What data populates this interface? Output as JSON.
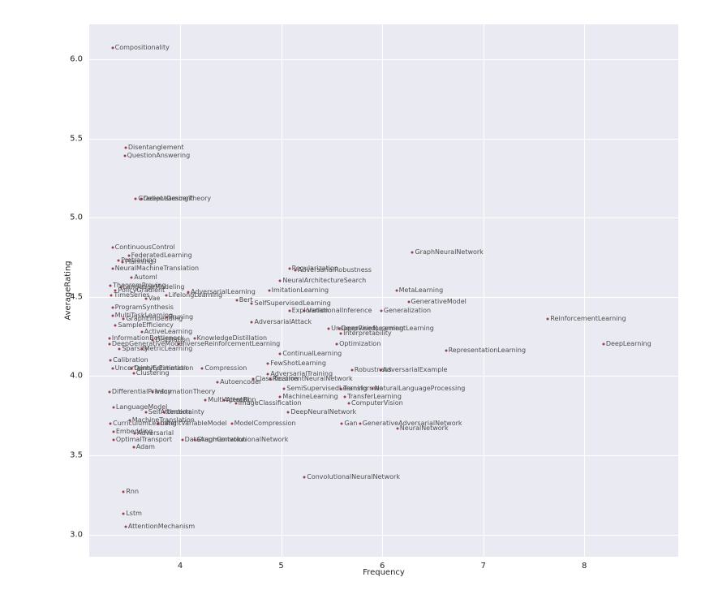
{
  "chart_data": {
    "type": "scatter",
    "title": "",
    "xlabel": "Frequency",
    "ylabel": "AverageRating",
    "xlim": [
      3.1,
      8.93
    ],
    "ylim": [
      2.86,
      6.22
    ],
    "x_ticks": [
      4,
      5,
      6,
      7,
      8
    ],
    "x_tick_labels": [
      "4",
      "5",
      "6",
      "7",
      "8"
    ],
    "y_ticks": [
      3.0,
      3.5,
      4.0,
      4.5,
      5.0,
      5.5,
      6.0
    ],
    "y_tick_labels": [
      "3.0",
      "3.5",
      "4.0",
      "4.5",
      "5.0",
      "5.5",
      "6.0"
    ],
    "grid": true,
    "legend": false,
    "style": {
      "plot_bg": "#eaeaf2",
      "grid_color": "#ffffff",
      "dot_color": "#8f2d3c",
      "point_label_color": "#4d4d4d",
      "tick_color": "#262626"
    },
    "points": [
      {
        "label": "Compositionality",
        "x": 3.33,
        "y": 6.07
      },
      {
        "label": "Disentanglement",
        "x": 3.46,
        "y": 5.44
      },
      {
        "label": "QuestionAnswering",
        "x": 3.45,
        "y": 5.39
      },
      {
        "label": "GradientDescent",
        "x": 3.56,
        "y": 5.12
      },
      {
        "label": "DeepLearningTheory",
        "x": 3.61,
        "y": 5.12
      },
      {
        "label": "ContinuousControl",
        "x": 3.33,
        "y": 4.81
      },
      {
        "label": "FederatedLearning",
        "x": 3.49,
        "y": 4.76
      },
      {
        "label": "Pretraining",
        "x": 3.39,
        "y": 4.73
      },
      {
        "label": "Planning",
        "x": 3.43,
        "y": 4.72
      },
      {
        "label": "NeuralMachineTranslation",
        "x": 3.33,
        "y": 4.68
      },
      {
        "label": "Regularization",
        "x": 5.08,
        "y": 4.68
      },
      {
        "label": "AdversarialRobustness",
        "x": 5.14,
        "y": 4.67
      },
      {
        "label": "Automl",
        "x": 3.52,
        "y": 4.62
      },
      {
        "label": "TheoremProving",
        "x": 3.31,
        "y": 4.57
      },
      {
        "label": "LanguageModeling",
        "x": 3.41,
        "y": 4.56
      },
      {
        "label": "NeuralArchitectureSearch",
        "x": 4.99,
        "y": 4.6
      },
      {
        "label": "PolicyGradient",
        "x": 3.36,
        "y": 4.54
      },
      {
        "label": "AdversarialLearning",
        "x": 4.08,
        "y": 4.53
      },
      {
        "label": "ImitationLearning",
        "x": 4.88,
        "y": 4.54
      },
      {
        "label": "MetaLearning",
        "x": 6.14,
        "y": 4.54
      },
      {
        "label": "TimeSeries",
        "x": 3.32,
        "y": 4.51
      },
      {
        "label": "LifelongLearning",
        "x": 3.86,
        "y": 4.51
      },
      {
        "label": "Vae",
        "x": 3.66,
        "y": 4.49
      },
      {
        "label": "Bert",
        "x": 4.56,
        "y": 4.48
      },
      {
        "label": "SelfSupervisedLearning",
        "x": 4.71,
        "y": 4.46
      },
      {
        "label": "ProgramSynthesis",
        "x": 3.33,
        "y": 4.43
      },
      {
        "label": "Exploration",
        "x": 5.08,
        "y": 4.41
      },
      {
        "label": "VariationalInference",
        "x": 5.23,
        "y": 4.41
      },
      {
        "label": "Generalization",
        "x": 5.99,
        "y": 4.41
      },
      {
        "label": "GenerativeModel",
        "x": 6.26,
        "y": 4.47
      },
      {
        "label": "GraphNeuralNetwork",
        "x": 6.3,
        "y": 4.78
      },
      {
        "label": "ReinforcementLearning",
        "x": 7.64,
        "y": 4.36
      },
      {
        "label": "MultiTaskLearning",
        "x": 3.33,
        "y": 4.38
      },
      {
        "label": "GraphEmbedding",
        "x": 3.44,
        "y": 4.36
      },
      {
        "label": "Pruning",
        "x": 3.86,
        "y": 4.37
      },
      {
        "label": "SampleEfficiency",
        "x": 3.36,
        "y": 4.32
      },
      {
        "label": "AdversarialAttack",
        "x": 4.71,
        "y": 4.34
      },
      {
        "label": "UnsupervisedLearning",
        "x": 5.47,
        "y": 4.3
      },
      {
        "label": "DeepReinforcementLearning",
        "x": 5.57,
        "y": 4.3
      },
      {
        "label": "ActiveLearning",
        "x": 3.62,
        "y": 4.28
      },
      {
        "label": "InformationBottleneck",
        "x": 3.3,
        "y": 4.24
      },
      {
        "label": "Distillation",
        "x": 3.73,
        "y": 4.23
      },
      {
        "label": "KnowledgeDistillation",
        "x": 4.14,
        "y": 4.24
      },
      {
        "label": "Interpretability",
        "x": 5.59,
        "y": 4.27
      },
      {
        "label": "DeepGenerativeModel",
        "x": 3.3,
        "y": 4.2
      },
      {
        "label": "InverseReinforcementLearning",
        "x": 3.98,
        "y": 4.2
      },
      {
        "label": "Optimization",
        "x": 5.55,
        "y": 4.2
      },
      {
        "label": "Sparsity",
        "x": 3.4,
        "y": 4.17
      },
      {
        "label": "MetricLearning",
        "x": 3.62,
        "y": 4.17
      },
      {
        "label": "RepresentationLearning",
        "x": 6.63,
        "y": 4.16
      },
      {
        "label": "DeepLearning",
        "x": 8.19,
        "y": 4.2
      },
      {
        "label": "ContinualLearning",
        "x": 4.99,
        "y": 4.14
      },
      {
        "label": "Calibration",
        "x": 3.31,
        "y": 4.1
      },
      {
        "label": "FewShotLearning",
        "x": 4.87,
        "y": 4.08
      },
      {
        "label": "UncertaintyEstimation",
        "x": 3.33,
        "y": 4.05
      },
      {
        "label": "DensityEstimation",
        "x": 3.52,
        "y": 4.05
      },
      {
        "label": "Compression",
        "x": 4.22,
        "y": 4.05
      },
      {
        "label": "Robustness",
        "x": 5.7,
        "y": 4.04
      },
      {
        "label": "AdversarialExample",
        "x": 5.98,
        "y": 4.04
      },
      {
        "label": "Clustering",
        "x": 3.54,
        "y": 4.02
      },
      {
        "label": "AdversarialTraining",
        "x": 4.87,
        "y": 4.01
      },
      {
        "label": "Classification",
        "x": 4.72,
        "y": 3.98
      },
      {
        "label": "RecurrentNeuralNetwork",
        "x": 4.89,
        "y": 3.98
      },
      {
        "label": "Autoencoder",
        "x": 4.37,
        "y": 3.96
      },
      {
        "label": "DifferentialPrivacy",
        "x": 3.3,
        "y": 3.9
      },
      {
        "label": "InformationTheory",
        "x": 3.73,
        "y": 3.9
      },
      {
        "label": "SemiSupervisedLearning",
        "x": 5.03,
        "y": 3.92
      },
      {
        "label": "Transformer",
        "x": 5.59,
        "y": 3.92
      },
      {
        "label": "NaturalLanguageProcessing",
        "x": 5.9,
        "y": 3.92
      },
      {
        "label": "MachineLearning",
        "x": 4.99,
        "y": 3.87
      },
      {
        "label": "TransferLearning",
        "x": 5.63,
        "y": 3.87
      },
      {
        "label": "MultiAgentRl",
        "x": 4.25,
        "y": 3.85
      },
      {
        "label": "Attention",
        "x": 4.43,
        "y": 3.85
      },
      {
        "label": "ImageClassification",
        "x": 4.55,
        "y": 3.83
      },
      {
        "label": "ComputerVision",
        "x": 5.67,
        "y": 3.83
      },
      {
        "label": "LanguageModel",
        "x": 3.34,
        "y": 3.8
      },
      {
        "label": "SelfAttention",
        "x": 3.66,
        "y": 3.77
      },
      {
        "label": "Uncertainty",
        "x": 3.84,
        "y": 3.77
      },
      {
        "label": "DeepNeuralNetwork",
        "x": 5.07,
        "y": 3.77
      },
      {
        "label": "MachineTranslation",
        "x": 3.5,
        "y": 3.72
      },
      {
        "label": "CurriculumLearning",
        "x": 3.31,
        "y": 3.7
      },
      {
        "label": "LatentVariableModel",
        "x": 3.78,
        "y": 3.7
      },
      {
        "label": "ModelCompression",
        "x": 4.51,
        "y": 3.7
      },
      {
        "label": "Gan",
        "x": 5.6,
        "y": 3.7
      },
      {
        "label": "GenerativeAdversarialNetwork",
        "x": 5.78,
        "y": 3.7
      },
      {
        "label": "NeuralNetwork",
        "x": 6.15,
        "y": 3.67
      },
      {
        "label": "Embedding",
        "x": 3.34,
        "y": 3.65
      },
      {
        "label": "Adversarial",
        "x": 3.55,
        "y": 3.64
      },
      {
        "label": "OptimalTransport",
        "x": 3.34,
        "y": 3.6
      },
      {
        "label": "DataAugmentation",
        "x": 4.02,
        "y": 3.6
      },
      {
        "label": "GraphConvolutionalNetwork",
        "x": 4.14,
        "y": 3.6
      },
      {
        "label": "Adam",
        "x": 3.54,
        "y": 3.55
      },
      {
        "label": "ConvolutionalNeuralNetwork",
        "x": 5.23,
        "y": 3.36
      },
      {
        "label": "Rnn",
        "x": 3.44,
        "y": 3.27
      },
      {
        "label": "Lstm",
        "x": 3.44,
        "y": 3.13
      },
      {
        "label": "AttentionMechanism",
        "x": 3.46,
        "y": 3.05
      }
    ]
  }
}
